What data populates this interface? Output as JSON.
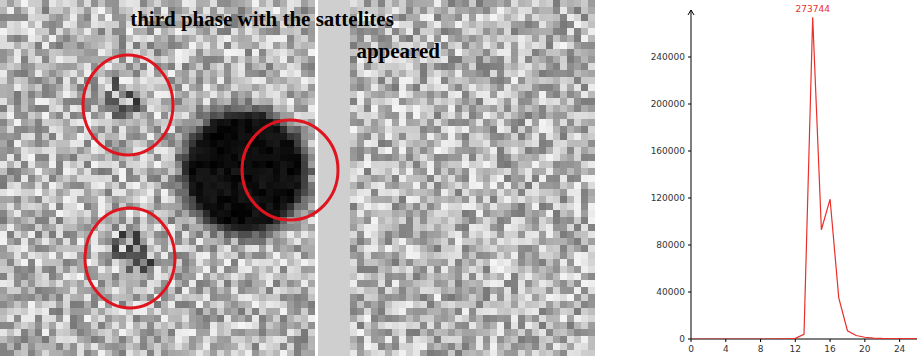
{
  "image": {
    "caption": [
      "third phase with the sattelites",
      "appeared"
    ]
  },
  "chart_data": {
    "type": "line",
    "x": [
      0,
      1,
      2,
      3,
      4,
      5,
      6,
      7,
      8,
      9,
      10,
      11,
      12,
      13,
      14,
      15,
      16,
      17,
      18,
      19,
      20,
      21,
      22,
      23,
      24,
      25,
      26
    ],
    "values": [
      0,
      0,
      0,
      0,
      0,
      0,
      0,
      0,
      0,
      0,
      100,
      200,
      500,
      4000,
      273744,
      93000,
      119000,
      35000,
      7000,
      3000,
      1500,
      800,
      500,
      400,
      300,
      300,
      300
    ],
    "color": "#e8302a",
    "xlim": [
      0,
      26
    ],
    "ylim": [
      0,
      280000
    ],
    "xticks": [
      0,
      4,
      8,
      12,
      16,
      20,
      24
    ],
    "yticks": [
      0,
      40000,
      80000,
      120000,
      160000,
      200000,
      240000
    ],
    "grid": false,
    "annotations": [
      {
        "x": 14,
        "y": 273744,
        "label": "273744"
      }
    ]
  }
}
